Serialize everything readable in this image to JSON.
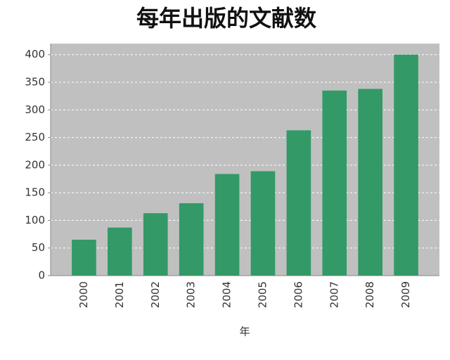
{
  "chart_data": {
    "type": "bar",
    "title": "每年出版的文献数",
    "x_label": "年",
    "categories": [
      "2000",
      "2001",
      "2002",
      "2003",
      "2004",
      "2005",
      "2006",
      "2007",
      "2008",
      "2009"
    ],
    "values": [
      65,
      87,
      113,
      131,
      184,
      189,
      263,
      335,
      338,
      400
    ],
    "color": "#339966",
    "ylim": [
      0,
      420
    ],
    "yticks": [
      0,
      50,
      100,
      150,
      200,
      250,
      300,
      350,
      400
    ],
    "grid": true
  }
}
